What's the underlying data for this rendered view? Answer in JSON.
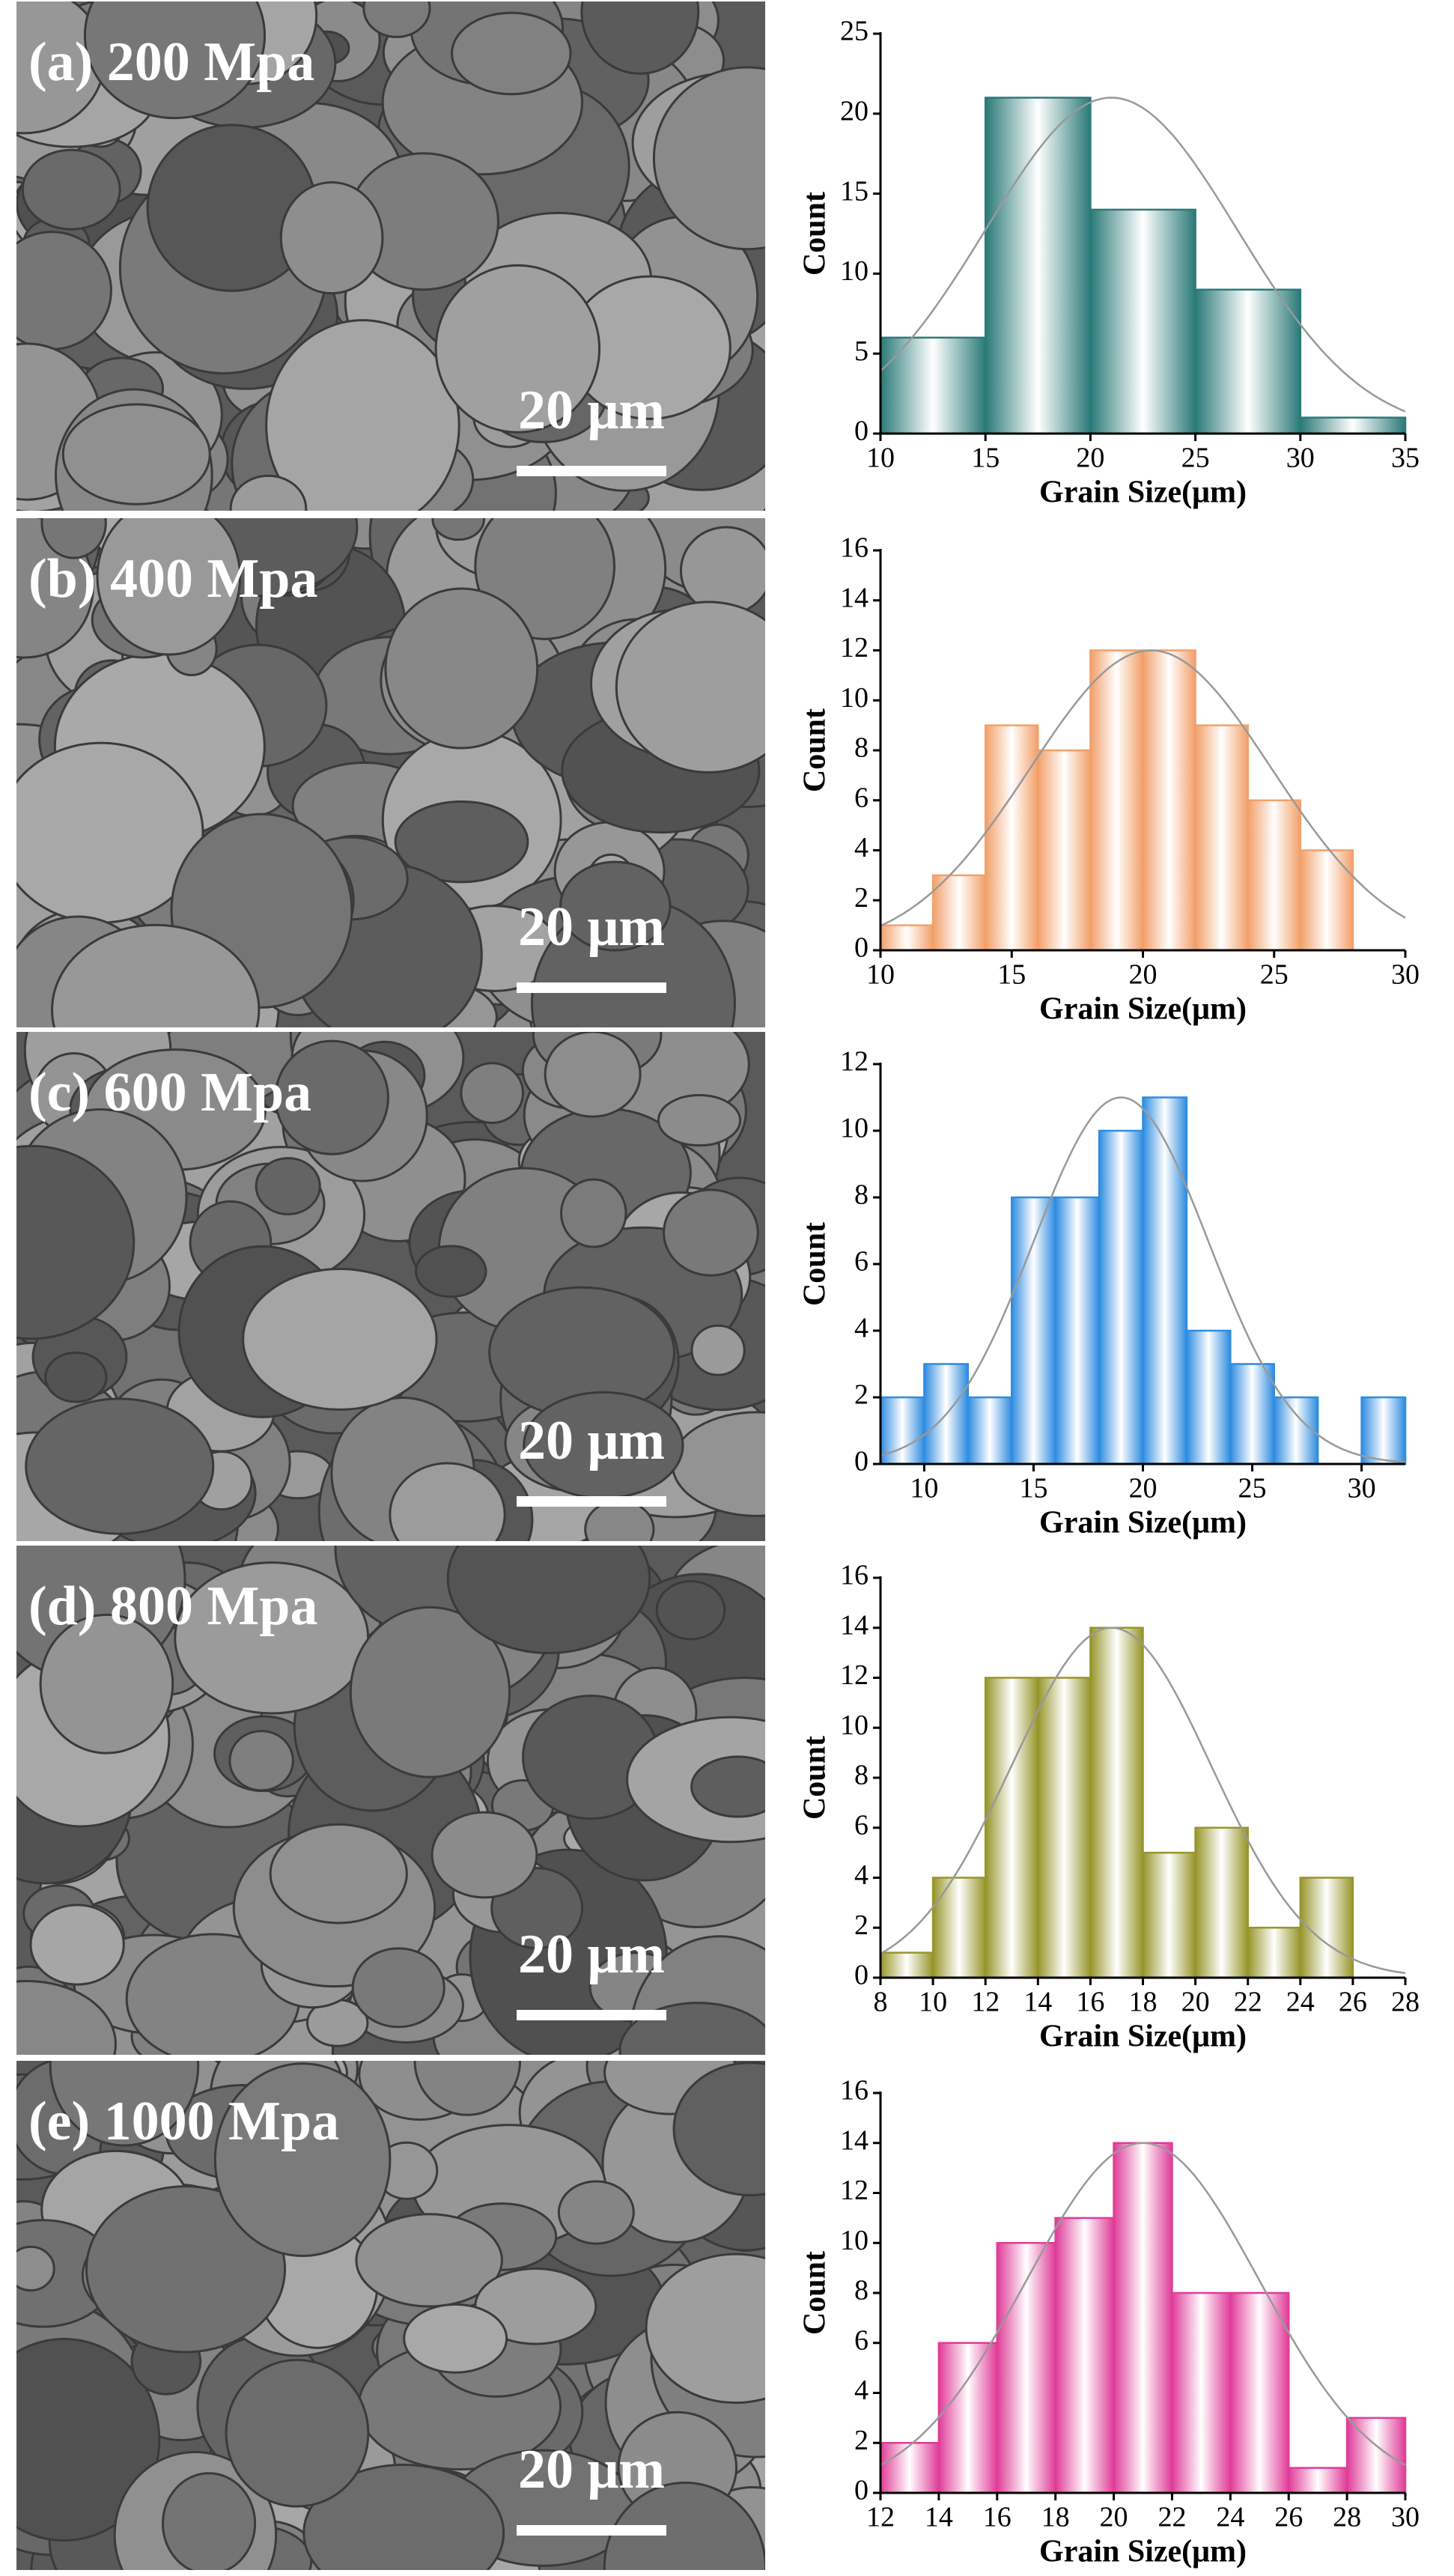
{
  "panels": [
    {
      "label": "(a) 200 Mpa",
      "scale_bar": "20 μm"
    },
    {
      "label": "(b) 400 Mpa",
      "scale_bar": "20 μm"
    },
    {
      "label": "(c) 600 Mpa",
      "scale_bar": "20 μm"
    },
    {
      "label": "(d) 800 Mpa",
      "scale_bar": "20 μm"
    },
    {
      "label": "(e) 1000 Mpa",
      "scale_bar": "20 μm"
    }
  ],
  "chart_data": [
    {
      "type": "histogram",
      "x_label": "Grain Size(μm)",
      "y_label": "Count",
      "color": "#2a7a78",
      "bins": [
        10,
        15,
        20,
        25,
        30,
        35
      ],
      "values": [
        6,
        21,
        14,
        9,
        1
      ],
      "xlim": [
        10,
        35
      ],
      "xticks": [
        10,
        15,
        20,
        25,
        30,
        35
      ],
      "ylim": [
        0,
        25
      ],
      "yticks": [
        0,
        5,
        10,
        15,
        20,
        25
      ],
      "fit": {
        "mean": 21,
        "sd": 6,
        "peak": 21
      }
    },
    {
      "type": "histogram",
      "x_label": "Grain Size(μm)",
      "y_label": "Count",
      "color": "#f2a06a",
      "bins": [
        10,
        12,
        14,
        16,
        18,
        20,
        22,
        24,
        26,
        28
      ],
      "values": [
        1,
        3,
        9,
        8,
        12,
        12,
        9,
        6,
        4
      ],
      "xlim": [
        10,
        30
      ],
      "xticks": [
        10,
        15,
        20,
        25,
        30
      ],
      "ylim": [
        0,
        16
      ],
      "yticks": [
        0,
        2,
        4,
        6,
        8,
        10,
        12,
        14,
        16
      ],
      "fit": {
        "mean": 20.3,
        "sd": 4.6,
        "peak": 12
      }
    },
    {
      "type": "histogram",
      "x_label": "Grain Size(μm)",
      "y_label": "Count",
      "color": "#2f8ce0",
      "bins": [
        8,
        10,
        12,
        14,
        16,
        18,
        20,
        22,
        24,
        26,
        28,
        30,
        32
      ],
      "values": [
        2,
        3,
        2,
        8,
        8,
        10,
        11,
        4,
        3,
        2,
        0,
        2
      ],
      "xlim": [
        8,
        32
      ],
      "xticks": [
        10,
        15,
        20,
        25,
        30
      ],
      "ylim": [
        0,
        12
      ],
      "yticks": [
        0,
        2,
        4,
        6,
        8,
        10,
        12
      ],
      "fit": {
        "mean": 19,
        "sd": 4,
        "peak": 11
      }
    },
    {
      "type": "histogram",
      "x_label": "Grain Size(μm)",
      "y_label": "Count",
      "color": "#97952a",
      "bins": [
        8,
        10,
        12,
        14,
        16,
        18,
        20,
        22,
        24,
        26
      ],
      "values": [
        1,
        4,
        12,
        12,
        14,
        5,
        6,
        2,
        4
      ],
      "xlim": [
        8,
        28
      ],
      "xticks": [
        8,
        10,
        12,
        14,
        16,
        18,
        20,
        22,
        24,
        26,
        28
      ],
      "ylim": [
        0,
        16
      ],
      "yticks": [
        0,
        2,
        4,
        6,
        8,
        10,
        12,
        14,
        16
      ],
      "fit": {
        "mean": 16.8,
        "sd": 3.8,
        "peak": 14
      }
    },
    {
      "type": "histogram",
      "x_label": "Grain Size(μm)",
      "y_label": "Count",
      "color": "#e03c98",
      "bins": [
        12,
        14,
        16,
        18,
        20,
        22,
        24,
        26,
        28,
        30
      ],
      "values": [
        2,
        6,
        10,
        11,
        14,
        8,
        8,
        1,
        3
      ],
      "xlim": [
        12,
        30
      ],
      "xticks": [
        12,
        14,
        16,
        18,
        20,
        22,
        24,
        26,
        28,
        30
      ],
      "ylim": [
        0,
        16
      ],
      "yticks": [
        0,
        2,
        4,
        6,
        8,
        10,
        12,
        14,
        16
      ],
      "fit": {
        "mean": 21,
        "sd": 4,
        "peak": 14
      }
    }
  ]
}
